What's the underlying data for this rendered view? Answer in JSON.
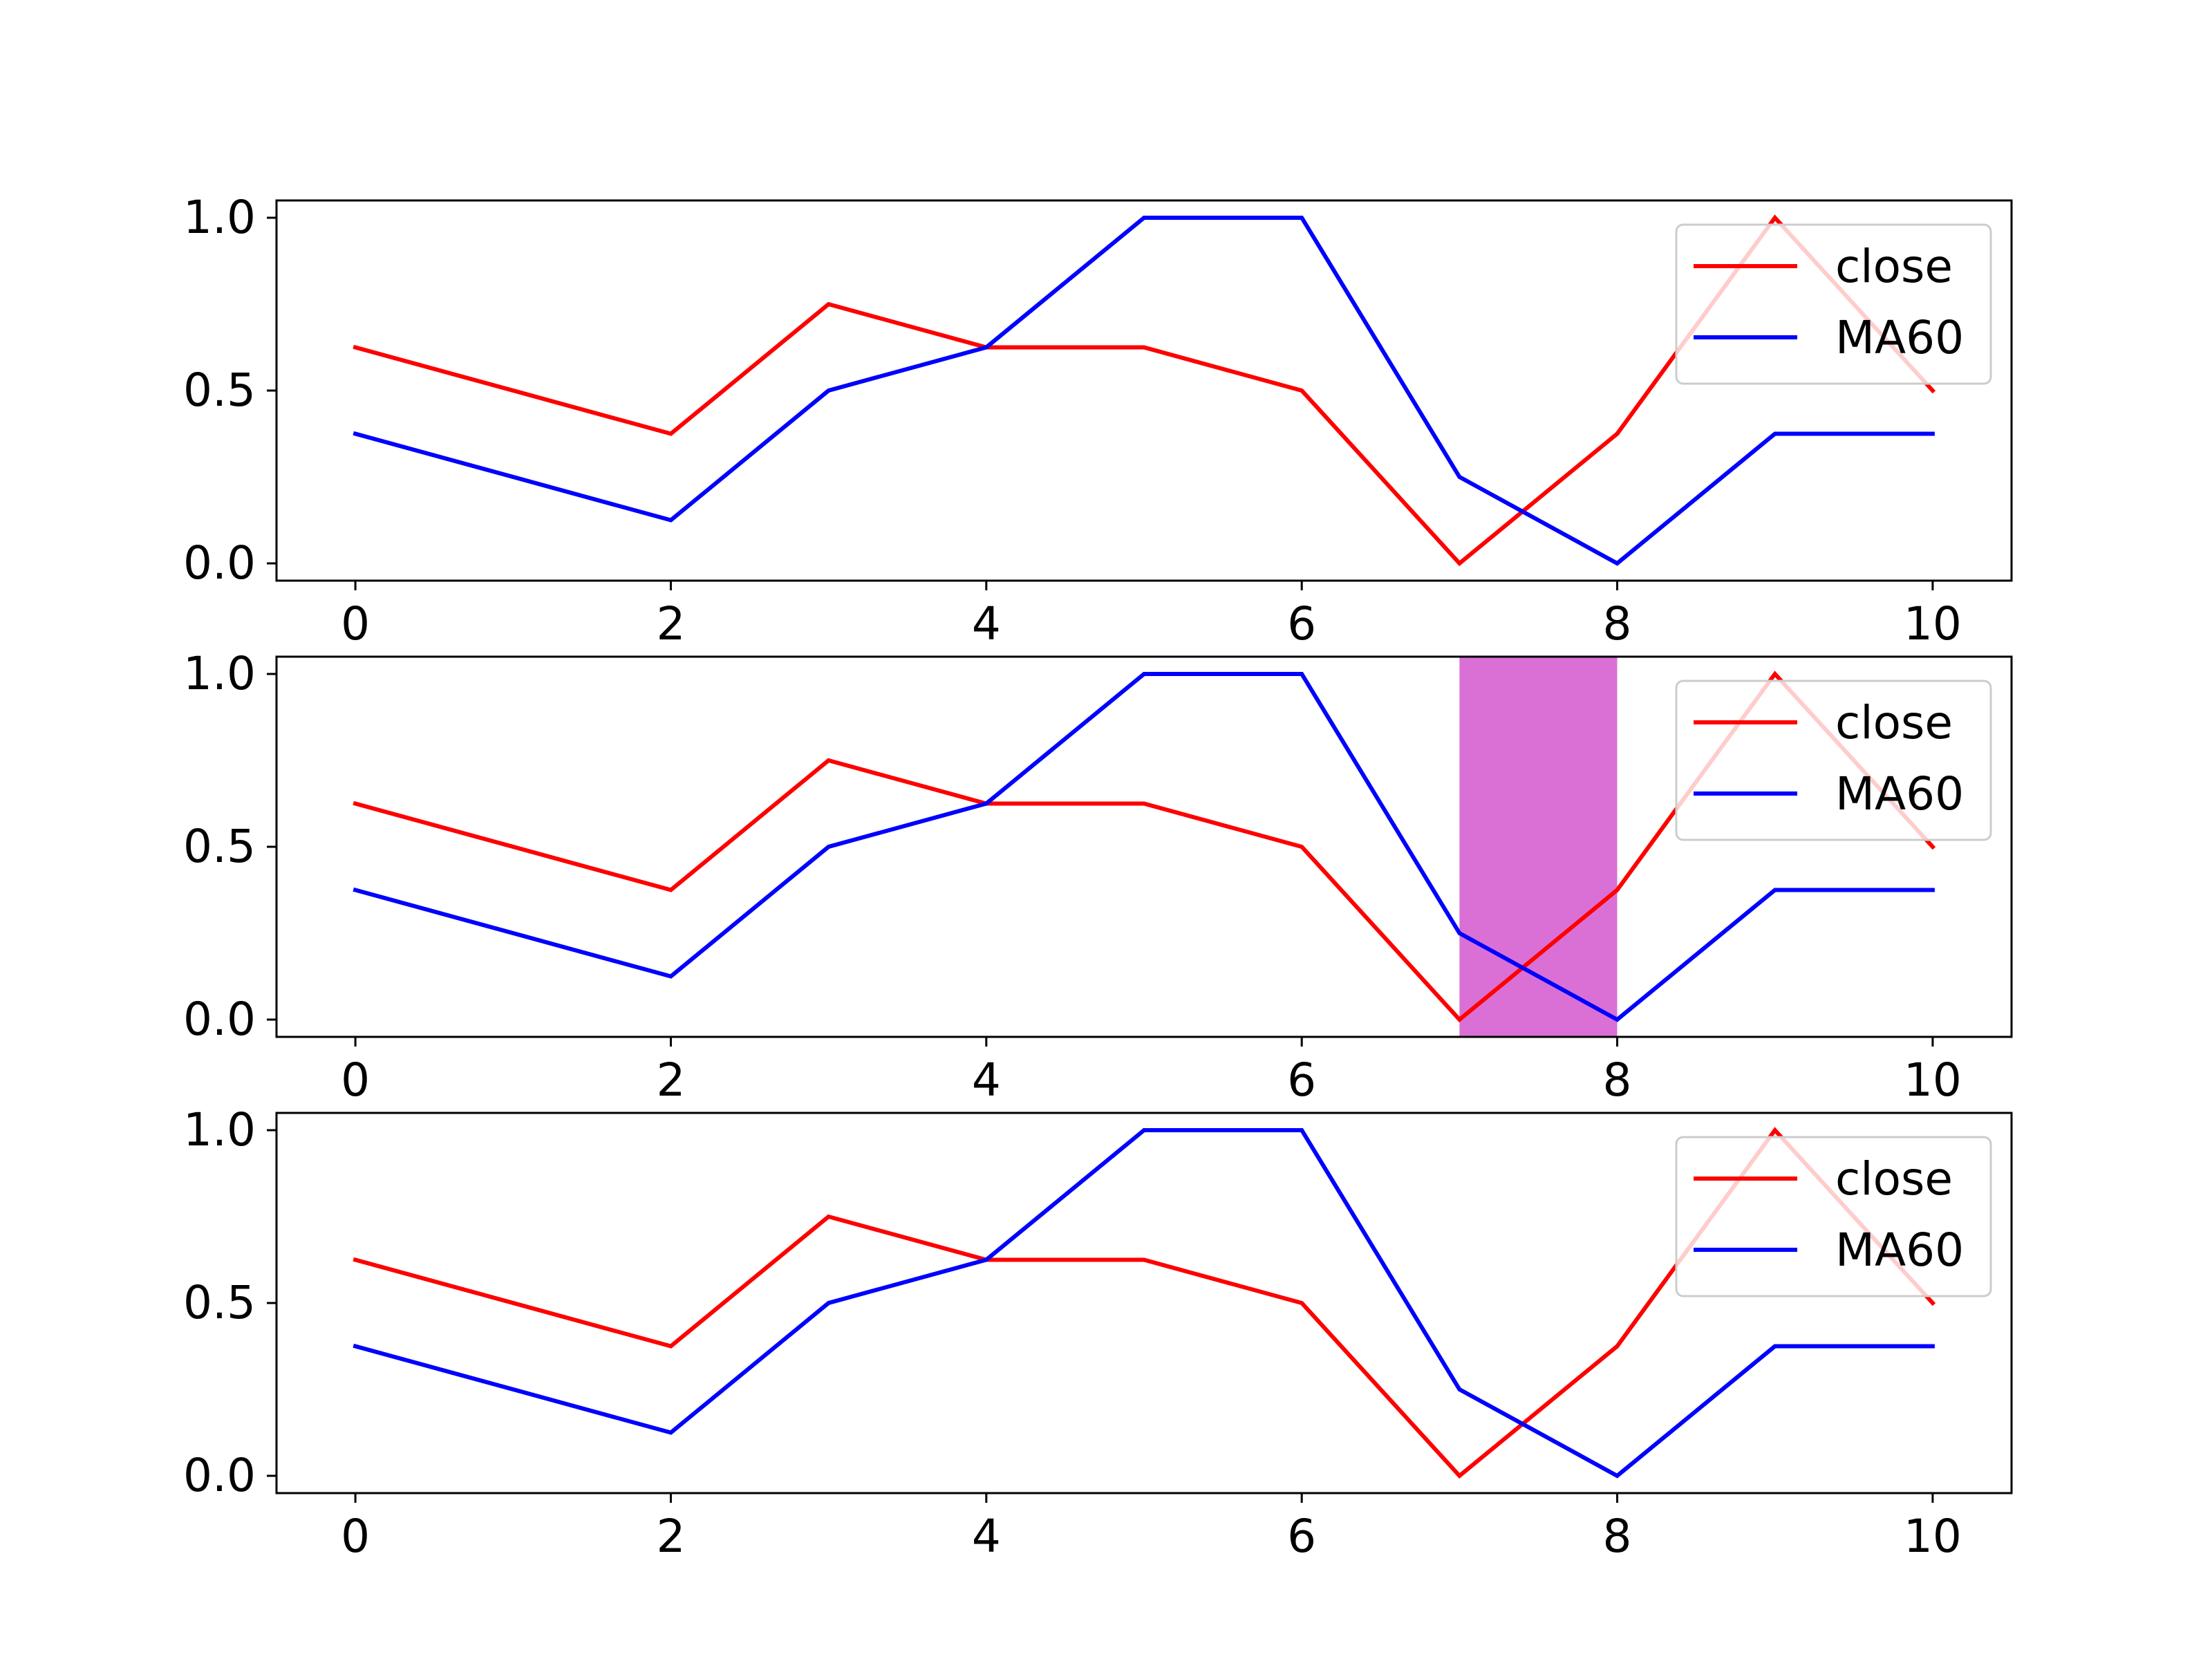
{
  "chart_data": [
    {
      "type": "line",
      "x": [
        0,
        2,
        3,
        4,
        5,
        6,
        7,
        8,
        9,
        10
      ],
      "series": [
        {
          "name": "close",
          "color": "#ff0000",
          "values": [
            0.625,
            0.375,
            0.75,
            0.625,
            0.625,
            0.5,
            0.0,
            0.375,
            1.0,
            0.5
          ]
        },
        {
          "name": "MA60",
          "color": "#0000ff",
          "values": [
            0.375,
            0.125,
            0.5,
            0.625,
            1.0,
            1.0,
            0.25,
            0.0,
            0.375,
            0.375
          ]
        }
      ],
      "xticks": [
        "0",
        "2",
        "4",
        "6",
        "8",
        "10"
      ],
      "yticks": [
        "0.0",
        "0.5",
        "1.0"
      ],
      "xlim": [
        -0.5,
        10.5
      ],
      "ylim": [
        -0.05,
        1.05
      ],
      "legend": "top-right",
      "grid": false
    },
    {
      "type": "line",
      "x": [
        0,
        2,
        3,
        4,
        5,
        6,
        7,
        8,
        9,
        10
      ],
      "series": [
        {
          "name": "close",
          "color": "#ff0000",
          "values": [
            0.625,
            0.375,
            0.75,
            0.625,
            0.625,
            0.5,
            0.0,
            0.375,
            1.0,
            0.5
          ]
        },
        {
          "name": "MA60",
          "color": "#0000ff",
          "values": [
            0.375,
            0.125,
            0.5,
            0.625,
            1.0,
            1.0,
            0.25,
            0.0,
            0.375,
            0.375
          ]
        }
      ],
      "shaded_x_range": [
        7,
        8
      ],
      "shade_color": "#da70d6",
      "xticks": [
        "0",
        "2",
        "4",
        "6",
        "8",
        "10"
      ],
      "yticks": [
        "0.0",
        "0.5",
        "1.0"
      ],
      "xlim": [
        -0.5,
        10.5
      ],
      "ylim": [
        -0.05,
        1.05
      ],
      "legend": "top-right",
      "grid": false
    },
    {
      "type": "line",
      "x": [
        0,
        2,
        3,
        4,
        5,
        6,
        7,
        8,
        9,
        10
      ],
      "series": [
        {
          "name": "close",
          "color": "#ff0000",
          "values": [
            0.625,
            0.375,
            0.75,
            0.625,
            0.625,
            0.5,
            0.0,
            0.375,
            1.0,
            0.5
          ]
        },
        {
          "name": "MA60",
          "color": "#0000ff",
          "values": [
            0.375,
            0.125,
            0.5,
            0.625,
            1.0,
            1.0,
            0.25,
            0.0,
            0.375,
            0.375
          ]
        }
      ],
      "xticks": [
        "0",
        "2",
        "4",
        "6",
        "8",
        "10"
      ],
      "yticks": [
        "0.0",
        "0.5",
        "1.0"
      ],
      "xlim": [
        -0.5,
        10.5
      ],
      "ylim": [
        -0.05,
        1.05
      ],
      "legend": "top-right",
      "grid": false
    }
  ]
}
